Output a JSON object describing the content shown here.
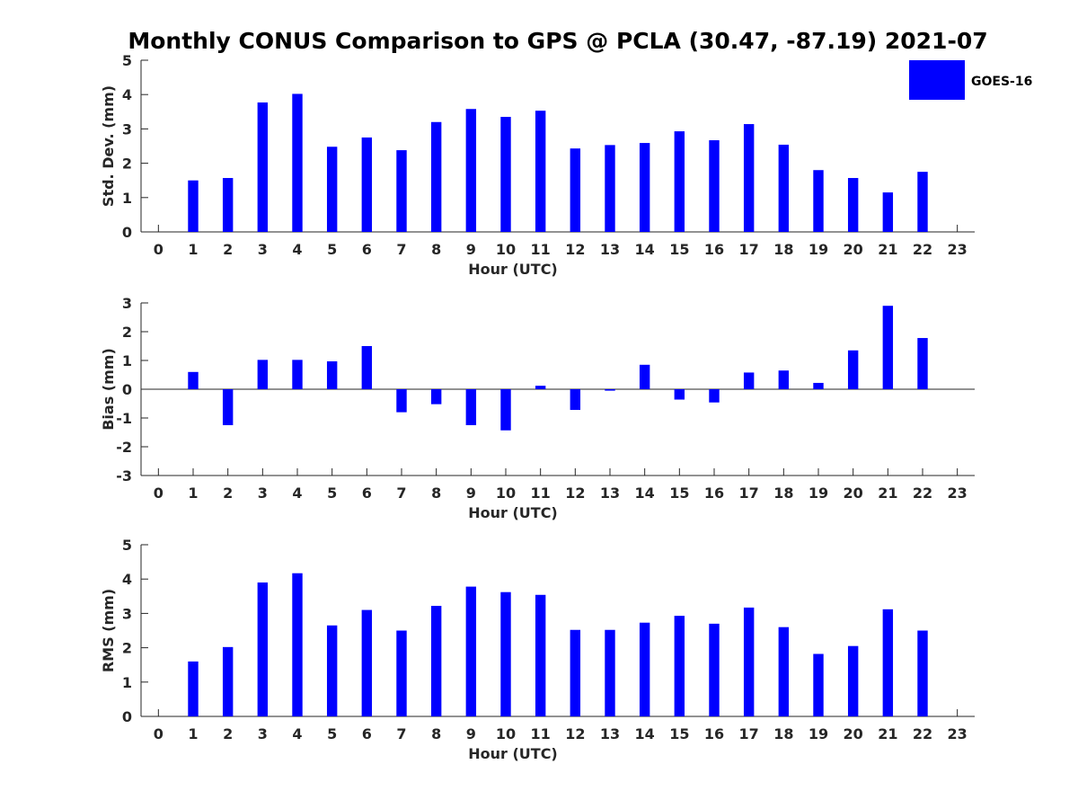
{
  "title": "Monthly CONUS Comparison to GPS @ PCLA (30.47, -87.19) 2021-07",
  "legend": {
    "label": "GOES-16",
    "color": "#0000ff"
  },
  "chart_data": [
    {
      "type": "bar",
      "name": "std-dev",
      "xlabel": "Hour (UTC)",
      "ylabel": "Std. Dev. (mm)",
      "ylim": [
        0,
        5
      ],
      "yticks": [
        "0",
        "1",
        "2",
        "3",
        "4",
        "5"
      ],
      "xticks": [
        "0",
        "1",
        "2",
        "3",
        "4",
        "5",
        "6",
        "7",
        "8",
        "9",
        "10",
        "11",
        "12",
        "13",
        "14",
        "15",
        "16",
        "17",
        "18",
        "19",
        "20",
        "21",
        "22",
        "23"
      ],
      "x": [
        1,
        2,
        3,
        4,
        5,
        6,
        7,
        8,
        9,
        10,
        11,
        12,
        13,
        14,
        15,
        16,
        17,
        18,
        19,
        20,
        21,
        22
      ],
      "values": [
        1.5,
        1.57,
        3.77,
        4.02,
        2.48,
        2.75,
        2.38,
        3.2,
        3.58,
        3.35,
        3.53,
        2.43,
        2.53,
        2.59,
        2.93,
        2.67,
        3.14,
        2.54,
        1.8,
        1.57,
        1.15,
        1.75
      ]
    },
    {
      "type": "bar",
      "name": "bias",
      "xlabel": "Hour (UTC)",
      "ylabel": "Bias (mm)",
      "ylim": [
        -3,
        3
      ],
      "yticks": [
        "-3",
        "-2",
        "-1",
        "0",
        "1",
        "2",
        "3"
      ],
      "xticks": [
        "0",
        "1",
        "2",
        "3",
        "4",
        "5",
        "6",
        "7",
        "8",
        "9",
        "10",
        "11",
        "12",
        "13",
        "14",
        "15",
        "16",
        "17",
        "18",
        "19",
        "20",
        "21",
        "22",
        "23"
      ],
      "x": [
        1,
        2,
        3,
        4,
        5,
        6,
        7,
        8,
        9,
        10,
        11,
        12,
        13,
        14,
        15,
        16,
        17,
        18,
        19,
        20,
        21,
        22
      ],
      "values": [
        0.6,
        -1.25,
        1.02,
        1.02,
        0.97,
        1.5,
        -0.8,
        -0.52,
        -1.25,
        -1.43,
        0.12,
        -0.72,
        -0.05,
        0.85,
        -0.36,
        -0.46,
        0.58,
        0.65,
        0.22,
        1.35,
        2.9,
        1.78
      ]
    },
    {
      "type": "bar",
      "name": "rms",
      "xlabel": "Hour (UTC)",
      "ylabel": "RMS (mm)",
      "ylim": [
        0,
        5
      ],
      "yticks": [
        "0",
        "1",
        "2",
        "3",
        "4",
        "5"
      ],
      "xticks": [
        "0",
        "1",
        "2",
        "3",
        "4",
        "5",
        "6",
        "7",
        "8",
        "9",
        "10",
        "11",
        "12",
        "13",
        "14",
        "15",
        "16",
        "17",
        "18",
        "19",
        "20",
        "21",
        "22",
        "23"
      ],
      "x": [
        1,
        2,
        3,
        4,
        5,
        6,
        7,
        8,
        9,
        10,
        11,
        12,
        13,
        14,
        15,
        16,
        17,
        18,
        19,
        20,
        21,
        22
      ],
      "values": [
        1.6,
        2.02,
        3.9,
        4.17,
        2.65,
        3.1,
        2.5,
        3.22,
        3.78,
        3.62,
        3.54,
        2.52,
        2.52,
        2.73,
        2.93,
        2.7,
        3.17,
        2.6,
        1.82,
        2.05,
        3.12,
        2.5
      ]
    }
  ]
}
